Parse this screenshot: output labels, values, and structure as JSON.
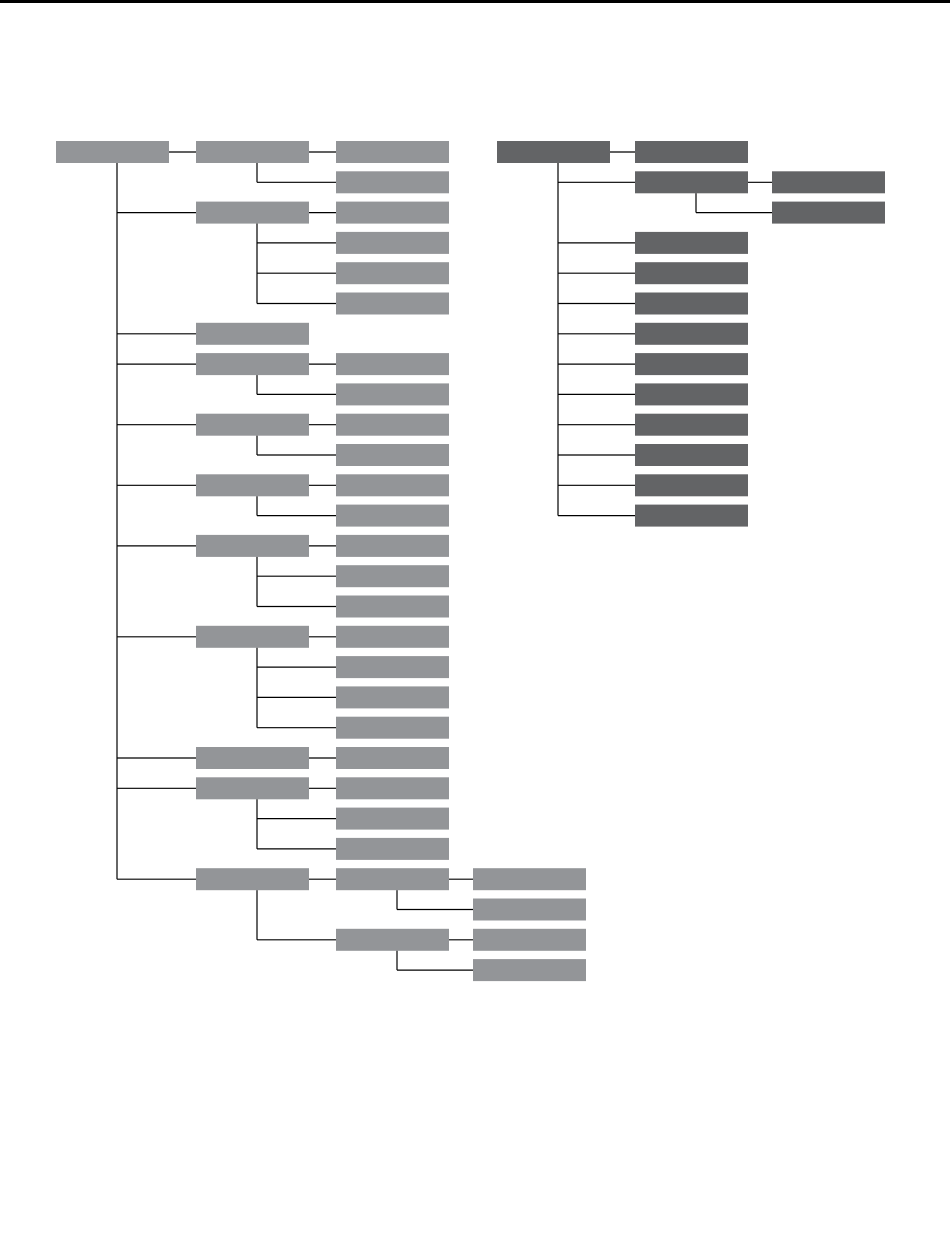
{
  "colors": {
    "background": "#ffffff",
    "top_rule": "#000000",
    "connector": "#000000",
    "light_node": "#939598",
    "dark_node": "#636466"
  },
  "labels_visible": false,
  "trees": [
    {
      "name": "light-tree",
      "color_key": "light_node",
      "children": [
        {
          "children": [
            {},
            {}
          ]
        },
        {
          "children": [
            {},
            {},
            {},
            {}
          ]
        },
        {
          "children": []
        },
        {
          "children": [
            {},
            {}
          ]
        },
        {
          "children": [
            {},
            {}
          ]
        },
        {
          "children": [
            {},
            {}
          ]
        },
        {
          "children": [
            {},
            {},
            {}
          ]
        },
        {
          "children": [
            {},
            {},
            {},
            {}
          ]
        },
        {
          "children": [
            {}
          ]
        },
        {
          "children": [
            {},
            {},
            {}
          ]
        },
        {
          "children": [
            {
              "children": [
                {},
                {}
              ]
            },
            {
              "children": [
                {},
                {}
              ]
            }
          ]
        }
      ]
    },
    {
      "name": "dark-tree",
      "color_key": "dark_node",
      "children": [
        {},
        {
          "children": [
            {},
            {}
          ]
        },
        {},
        {},
        {},
        {},
        {},
        {},
        {},
        {},
        {},
        {}
      ]
    }
  ]
}
